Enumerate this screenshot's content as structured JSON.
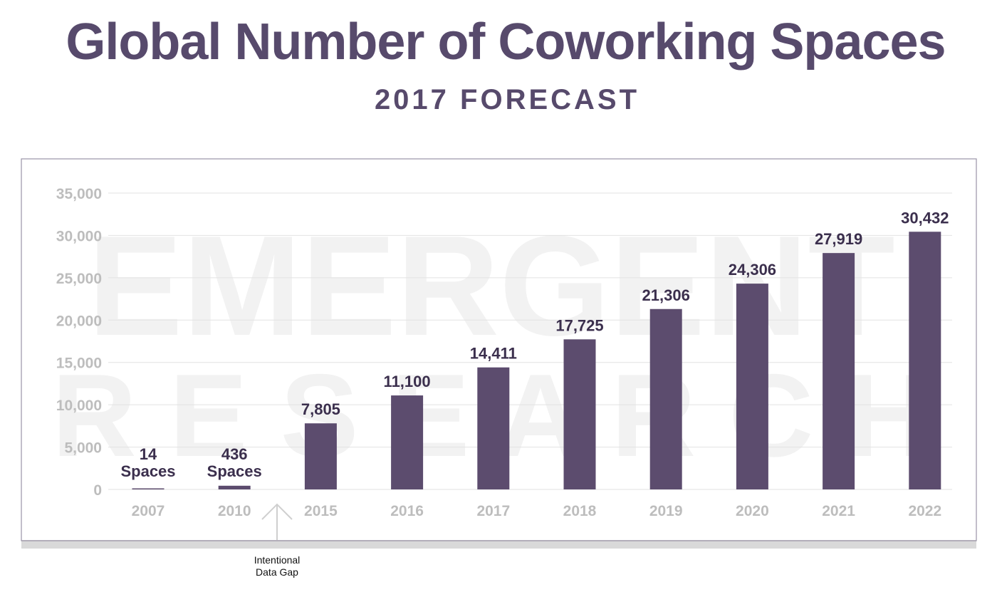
{
  "watermark": {
    "line1": "EMERGENT",
    "line2": "R E S E A R C H"
  },
  "note": {
    "line1": "Intentional",
    "line2": "Data Gap"
  },
  "colors": {
    "bar": "#5c4c6e",
    "title": "#574a6c",
    "label": "#3b2f4d",
    "tick": "#bdbdbd",
    "grid": "#e2e2e2"
  },
  "chart_data": {
    "type": "bar",
    "title": "Global Number of Coworking Spaces",
    "subtitle": "2017 FORECAST",
    "xlabel": "",
    "ylabel": "",
    "categories": [
      "2007",
      "2010",
      "2015",
      "2016",
      "2017",
      "2018",
      "2019",
      "2020",
      "2021",
      "2022"
    ],
    "values": [
      14,
      436,
      7805,
      11100,
      14411,
      17725,
      21306,
      24306,
      27919,
      30432
    ],
    "data_labels": [
      "14 Spaces",
      "436 Spaces",
      "7,805",
      "11,100",
      "14,411",
      "17,725",
      "21,306",
      "24,306",
      "27,919",
      "30,432"
    ],
    "ylim": [
      0,
      35000
    ],
    "yticks": [
      0,
      5000,
      10000,
      15000,
      20000,
      25000,
      30000,
      35000
    ],
    "ytick_labels": [
      "0",
      "5,000",
      "10,000",
      "15,000",
      "20,000",
      "25,000",
      "30,000",
      "35,000"
    ],
    "grid": true,
    "legend": "none"
  }
}
